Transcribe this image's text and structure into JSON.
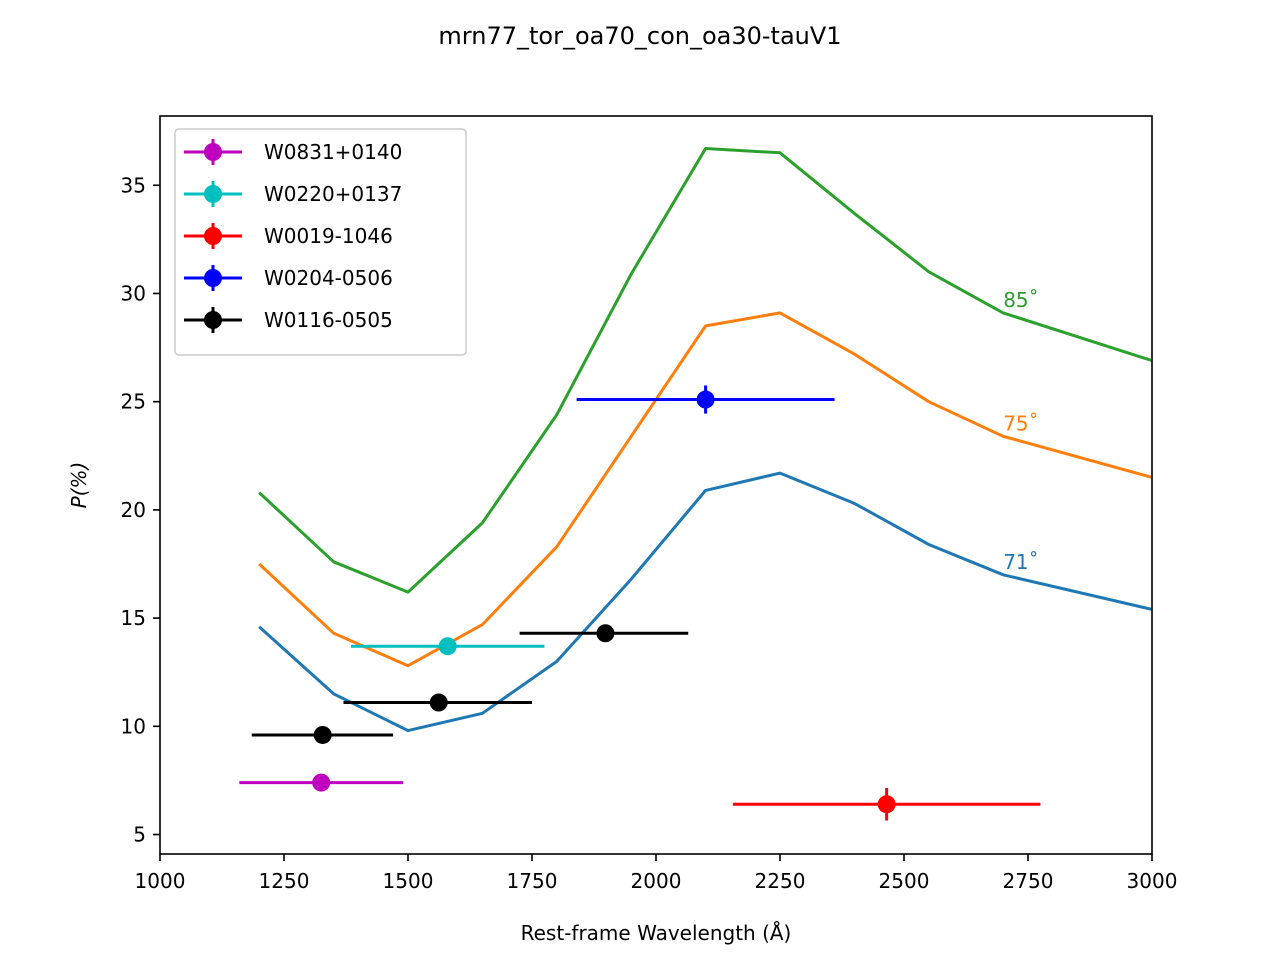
{
  "chart_data": {
    "type": "line",
    "title": "mrn77_tor_oa70_con_oa30-tauV1",
    "xlabel": "Rest-frame Wavelength (Å)",
    "ylabel": "P(%)",
    "xlim": [
      1000,
      3000
    ],
    "ylim": [
      4.1,
      38.2
    ],
    "xticks": [
      1000,
      1250,
      1500,
      1750,
      2000,
      2250,
      2500,
      2750,
      3000
    ],
    "yticks": [
      5,
      10,
      15,
      20,
      25,
      30,
      35
    ],
    "grid": false,
    "legend_position": "top-left",
    "model_curves": [
      {
        "label": "71˚",
        "color": "#1f77b4",
        "x": [
          1200,
          1350,
          1500,
          1650,
          1800,
          1950,
          2100,
          2250,
          2400,
          2550,
          2700,
          3000
        ],
        "y": [
          14.6,
          11.5,
          9.8,
          10.6,
          13.0,
          16.8,
          20.9,
          21.7,
          20.3,
          18.4,
          17.0,
          15.4
        ]
      },
      {
        "label": "75˚",
        "color": "#ff7f0e",
        "x": [
          1200,
          1350,
          1500,
          1650,
          1800,
          1950,
          2100,
          2250,
          2400,
          2550,
          2700,
          3000
        ],
        "y": [
          17.5,
          14.3,
          12.8,
          14.7,
          18.3,
          23.4,
          28.5,
          29.1,
          27.2,
          25.0,
          23.4,
          21.5
        ]
      },
      {
        "label": "85˚",
        "color": "#2ca02c",
        "x": [
          1200,
          1350,
          1500,
          1650,
          1800,
          1950,
          2100,
          2250,
          2400,
          2550,
          2700,
          3000
        ],
        "y": [
          20.8,
          17.6,
          16.2,
          19.4,
          24.4,
          30.9,
          36.7,
          36.5,
          33.7,
          31.0,
          29.1,
          26.9
        ]
      }
    ],
    "series": [
      {
        "name": "W0831+0140",
        "color": "#bf00bf",
        "points": [
          {
            "x": 1325,
            "y": 7.4,
            "xerr": [
              1160,
              1490
            ],
            "yerr": 0.1
          }
        ]
      },
      {
        "name": "W0220+0137",
        "color": "#00bfbf",
        "points": [
          {
            "x": 1580,
            "y": 13.7,
            "xerr": [
              1385,
              1775
            ],
            "yerr": 0.15
          }
        ]
      },
      {
        "name": "W0019-1046",
        "color": "#ff0000",
        "points": [
          {
            "x": 2465,
            "y": 6.4,
            "xerr": [
              2155,
              2775
            ],
            "yerr": 0.75
          }
        ]
      },
      {
        "name": "W0204-0506",
        "color": "#0000ff",
        "points": [
          {
            "x": 2100,
            "y": 25.1,
            "xerr": [
              1840,
              2360
            ],
            "yerr": 0.65
          }
        ]
      },
      {
        "name": "W0116-0505",
        "color": "#000000",
        "points": [
          {
            "x": 1328,
            "y": 9.6,
            "xerr": [
              1185,
              1470
            ],
            "yerr": 0.1
          },
          {
            "x": 1562,
            "y": 11.1,
            "xerr": [
              1370,
              1750
            ],
            "yerr": 0.15
          },
          {
            "x": 1898,
            "y": 14.3,
            "xerr": [
              1725,
              2065
            ],
            "yerr": 0.35
          }
        ]
      }
    ]
  }
}
